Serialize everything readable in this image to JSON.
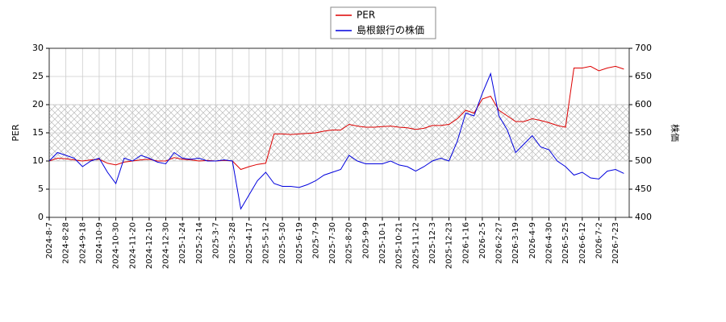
{
  "chart_data": {
    "type": "line",
    "categories": [
      "2024-8-7",
      null,
      "2024-8-28",
      null,
      "2024-9-18",
      null,
      "2024-10-9",
      null,
      "2024-10-30",
      null,
      "2024-11-20",
      null,
      "2024-12-10",
      null,
      "2024-12-30",
      null,
      "2025-1-24",
      null,
      "2025-2-14",
      null,
      "2025-3-7",
      null,
      "2025-3-28",
      null,
      "2025-4-17",
      null,
      "2025-5-12",
      null,
      "2025-5-30",
      null,
      "2025-6-19",
      null,
      "2025-7-9",
      null,
      "2025-7-30",
      null,
      "2025-8-20",
      null,
      "2025-9-9",
      null,
      "2025-10-1",
      null,
      "2025-10-21",
      null,
      "2025-11-12",
      null,
      "2025-12-3",
      null,
      "2025-12-23",
      null,
      "2026-1-16",
      null,
      "2026-2-5",
      null,
      "2026-2-27",
      null,
      "2026-3-19",
      null,
      "2026-4-9",
      null,
      "2026-4-30",
      null,
      "2026-5-25",
      null,
      "2026-6-12",
      null,
      "2026-7-2",
      null,
      "2026-7-23",
      null
    ],
    "series": [
      {
        "name": "PER",
        "color": "#dd0000",
        "values": [
          10.0,
          10.5,
          10.4,
          10.2,
          10.0,
          10.2,
          10.3,
          9.6,
          9.3,
          9.8,
          10.0,
          10.2,
          10.3,
          10.0,
          10.0,
          10.6,
          10.3,
          10.2,
          10.0,
          10.1,
          10.0,
          10.1,
          10.0,
          8.5,
          9.0,
          9.4,
          9.6,
          14.8,
          14.8,
          14.7,
          14.8,
          14.9,
          15.0,
          15.3,
          15.5,
          15.5,
          16.5,
          16.2,
          16.0,
          16.0,
          16.1,
          16.2,
          16.0,
          15.9,
          15.6,
          15.8,
          16.3,
          16.3,
          16.5,
          17.5,
          19.0,
          18.5,
          21.0,
          21.5,
          19.0,
          18.0,
          17.0,
          17.0,
          17.5,
          17.2,
          16.8,
          16.3,
          16.0,
          26.5,
          26.5,
          26.8,
          26.0,
          26.5,
          26.8,
          26.3
        ]
      },
      {
        "name": "島根銀行の株価",
        "color": "#0000dd",
        "axis": "y2",
        "values": [
          500,
          515,
          510,
          505,
          490,
          500,
          505,
          480,
          460,
          505,
          500,
          510,
          505,
          498,
          495,
          515,
          505,
          503,
          505,
          500,
          500,
          502,
          500,
          415,
          440,
          465,
          480,
          460,
          455,
          455,
          453,
          458,
          465,
          475,
          480,
          485,
          510,
          500,
          495,
          495,
          495,
          500,
          493,
          490,
          482,
          490,
          500,
          505,
          500,
          535,
          585,
          580,
          620,
          655,
          580,
          555,
          515,
          530,
          545,
          525,
          520,
          500,
          490,
          475,
          480,
          470,
          468,
          482,
          485,
          478
        ]
      }
    ],
    "ylabel": "PER",
    "y2label": "株価",
    "ylim": [
      0,
      30
    ],
    "yticks": [
      0,
      5,
      10,
      15,
      20,
      25,
      30
    ],
    "y2lim": [
      400,
      700
    ],
    "y2ticks": [
      400,
      450,
      500,
      550,
      600,
      650,
      700
    ],
    "shaded_range": [
      10,
      20
    ],
    "grid": true,
    "legend": "top"
  }
}
